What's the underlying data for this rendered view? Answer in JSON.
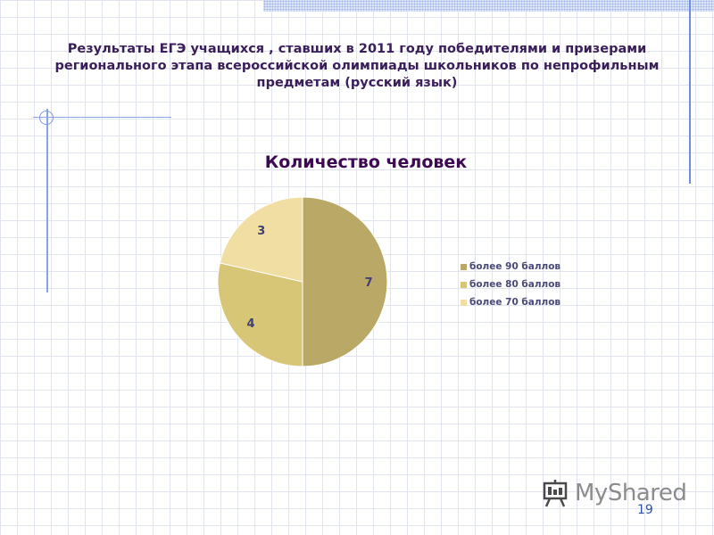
{
  "slide": {
    "title_lines": [
      "Результаты ЕГЭ учащихся , ставших в 2011 году победителями и призерами",
      "регионального этапа всероссийской олимпиады школьников по непрофильным",
      "предметам (русский язык)"
    ],
    "page_number": "19"
  },
  "logo": {
    "text": "MyShared",
    "icon": "presentation-board-icon"
  },
  "chart_data": {
    "type": "pie",
    "title": "Количество человек",
    "slices": [
      {
        "label": "более 90 баллов",
        "value": 7,
        "color": "#b9a866"
      },
      {
        "label": "более 80 баллов",
        "value": 4,
        "color": "#d8c677"
      },
      {
        "label": "более 70 баллов",
        "value": 3,
        "color": "#f0dea2"
      }
    ],
    "legend_position": "right",
    "data_labels": true
  },
  "colors": {
    "title": "#3a1e5a",
    "chart_title": "#3d0a52",
    "data_label": "#3f3f75",
    "legend_text": "#4a4a78",
    "page_number": "#2d4fa8"
  }
}
